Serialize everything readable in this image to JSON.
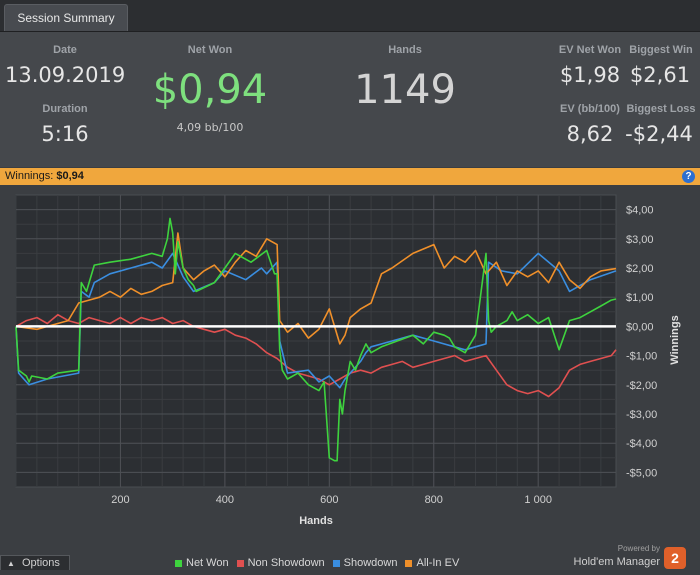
{
  "tab": {
    "label": "Session Summary"
  },
  "summary": {
    "date_label": "Date",
    "date_value": "13.09.2019",
    "duration_label": "Duration",
    "duration_value": "5:16",
    "netwon_label": "Net Won",
    "netwon_value": "$0,94",
    "netwon_sub": "4,09 bb/100",
    "hands_label": "Hands",
    "hands_value": "1149",
    "ev_netwon_label": "EV Net Won",
    "ev_netwon_value": "$1,98",
    "biggest_win_label": "Biggest Win",
    "biggest_win_value": "$2,61",
    "ev_bb_label": "EV (bb/100)",
    "ev_bb_value": "8,62",
    "biggest_loss_label": "Biggest Loss",
    "biggest_loss_value": "-$2,44"
  },
  "winbar": {
    "label": "Winnings:",
    "value": "$0,94",
    "help_glyph": "?"
  },
  "options": {
    "label": "Options",
    "icon": "chevron-up-icon"
  },
  "brand": {
    "powered": "Powered by",
    "name": "Hold'em Manager",
    "logo": "2"
  },
  "colors": {
    "net_won": "#3ed33e",
    "non_showdown": "#e05050",
    "showdown": "#3a8ee0",
    "allin_ev": "#f0902a",
    "positive": "#7ee07e"
  },
  "chart_data": {
    "type": "line",
    "xlabel": "Hands",
    "ylabel": "Winnings",
    "xlim": [
      0,
      1149
    ],
    "ylim": [
      -5.5,
      4.5
    ],
    "x_ticks": [
      200,
      400,
      600,
      800,
      1000
    ],
    "x_tick_labels": [
      "200",
      "400",
      "600",
      "800",
      "1 000"
    ],
    "y_ticks": [
      4,
      3,
      2,
      1,
      0,
      -1,
      -2,
      -3,
      -4,
      -5
    ],
    "y_tick_labels": [
      "$4,00",
      "$3,00",
      "$2,00",
      "$1,00",
      "$0,00",
      "-$1,00",
      "-$2,00",
      "-$3,00",
      "-$4,00",
      "-$5,00"
    ],
    "grid": true,
    "legend_position": "bottom",
    "series": [
      {
        "name": "Net Won",
        "color": "#3ed33e",
        "x": [
          0,
          5,
          20,
          25,
          30,
          60,
          80,
          120,
          125,
          135,
          150,
          180,
          220,
          260,
          280,
          290,
          295,
          300,
          305,
          310,
          320,
          330,
          340,
          345,
          380,
          400,
          420,
          450,
          480,
          495,
          500,
          505,
          510,
          520,
          540,
          560,
          580,
          590,
          600,
          610,
          615,
          620,
          625,
          630,
          640,
          650,
          660,
          670,
          680,
          700,
          730,
          760,
          780,
          800,
          820,
          830,
          840,
          860,
          870,
          880,
          900,
          905,
          910,
          920,
          940,
          950,
          960,
          980,
          1000,
          1020,
          1040,
          1060,
          1080,
          1100,
          1120,
          1140,
          1149
        ],
        "y": [
          0,
          -1.5,
          -1.7,
          -1.9,
          -1.7,
          -1.8,
          -1.6,
          -1.5,
          1.5,
          1.2,
          2.1,
          2.2,
          2.3,
          2.5,
          2.4,
          3.0,
          3.7,
          3.2,
          1.8,
          2.9,
          2.0,
          1.6,
          1.4,
          1.2,
          1.5,
          2.0,
          2.5,
          2.2,
          2.6,
          1.8,
          1.8,
          -0.8,
          -1.5,
          -1.8,
          -1.6,
          -2.0,
          -2.2,
          -1.9,
          -4.5,
          -4.6,
          -4.6,
          -2.5,
          -3.0,
          -2.2,
          -1.2,
          -1.5,
          -1.0,
          -0.6,
          -0.9,
          -0.7,
          -0.5,
          -0.3,
          -0.6,
          -0.2,
          -0.3,
          -0.4,
          -0.7,
          -0.9,
          -0.6,
          -0.3,
          2.5,
          0.2,
          -0.2,
          0.0,
          0.2,
          0.5,
          0.2,
          0.4,
          0.1,
          0.3,
          -0.8,
          0.2,
          0.3,
          0.5,
          0.7,
          0.9,
          0.94
        ]
      },
      {
        "name": "Non Showdown",
        "color": "#e05050",
        "x": [
          0,
          20,
          40,
          60,
          80,
          100,
          120,
          140,
          160,
          180,
          200,
          220,
          240,
          260,
          280,
          300,
          320,
          340,
          360,
          380,
          400,
          420,
          440,
          460,
          480,
          500,
          520,
          540,
          560,
          580,
          600,
          620,
          640,
          660,
          680,
          700,
          720,
          740,
          760,
          780,
          800,
          820,
          840,
          860,
          880,
          900,
          920,
          940,
          960,
          980,
          1000,
          1020,
          1040,
          1060,
          1080,
          1100,
          1120,
          1140,
          1149
        ],
        "y": [
          0,
          0.2,
          0.3,
          0.1,
          0.4,
          0.2,
          0.1,
          0.3,
          0.2,
          0.1,
          0.3,
          0.1,
          0.3,
          0.2,
          0.3,
          0.1,
          0.2,
          0.0,
          -0.1,
          -0.2,
          -0.1,
          -0.3,
          -0.4,
          -0.6,
          -0.9,
          -1.1,
          -1.4,
          -1.6,
          -1.7,
          -1.8,
          -2.0,
          -1.8,
          -1.6,
          -1.5,
          -1.6,
          -1.4,
          -1.3,
          -1.2,
          -1.4,
          -1.3,
          -1.2,
          -1.1,
          -1.0,
          -1.2,
          -1.1,
          -1.0,
          -1.5,
          -2.0,
          -2.2,
          -2.3,
          -2.2,
          -2.4,
          -2.1,
          -1.5,
          -1.3,
          -1.2,
          -1.1,
          -1.0,
          -0.8
        ]
      },
      {
        "name": "Showdown",
        "color": "#3a8ee0",
        "x": [
          0,
          5,
          20,
          25,
          60,
          120,
          125,
          140,
          150,
          180,
          220,
          260,
          280,
          300,
          320,
          340,
          380,
          400,
          440,
          470,
          480,
          500,
          505,
          520,
          560,
          580,
          600,
          620,
          630,
          640,
          660,
          670,
          680,
          720,
          760,
          800,
          860,
          880,
          900,
          905,
          930,
          960,
          1000,
          1040,
          1060,
          1100,
          1149
        ],
        "y": [
          0,
          -1.6,
          -1.9,
          -2.0,
          -1.8,
          -1.6,
          1.2,
          1.0,
          1.5,
          1.8,
          2.0,
          2.2,
          2.0,
          2.5,
          1.7,
          1.2,
          1.5,
          1.9,
          1.6,
          2.0,
          1.8,
          2.2,
          -0.5,
          -1.6,
          -1.5,
          -1.9,
          -1.7,
          -2.1,
          -1.8,
          -1.6,
          -1.2,
          -0.9,
          -0.7,
          -0.5,
          -0.3,
          -0.5,
          -0.8,
          -0.7,
          -0.6,
          2.2,
          1.9,
          1.8,
          2.5,
          1.9,
          1.2,
          1.6,
          1.9
        ]
      },
      {
        "name": "All-In EV",
        "color": "#f0902a",
        "x": [
          0,
          40,
          80,
          100,
          120,
          140,
          160,
          180,
          200,
          220,
          240,
          260,
          280,
          300,
          310,
          320,
          340,
          360,
          380,
          400,
          420,
          440,
          460,
          480,
          500,
          505,
          520,
          540,
          560,
          580,
          600,
          620,
          630,
          640,
          660,
          680,
          700,
          720,
          760,
          800,
          820,
          840,
          860,
          880,
          900,
          920,
          940,
          960,
          980,
          1000,
          1020,
          1040,
          1060,
          1080,
          1100,
          1120,
          1149
        ],
        "y": [
          0,
          -0.1,
          0.1,
          0.2,
          0.8,
          0.9,
          1.0,
          1.2,
          1.0,
          1.3,
          1.1,
          1.2,
          1.4,
          1.5,
          3.2,
          2.0,
          1.6,
          1.9,
          2.1,
          1.7,
          2.2,
          2.6,
          2.4,
          3.0,
          2.8,
          0.2,
          -0.2,
          0.1,
          -0.4,
          -0.1,
          0.6,
          -0.6,
          -0.3,
          0.3,
          0.6,
          0.8,
          1.8,
          2.0,
          2.5,
          2.8,
          2.0,
          2.4,
          2.2,
          2.6,
          1.8,
          2.2,
          1.4,
          1.9,
          1.7,
          1.9,
          1.5,
          2.2,
          1.6,
          1.3,
          1.7,
          1.9,
          1.98
        ]
      }
    ]
  }
}
